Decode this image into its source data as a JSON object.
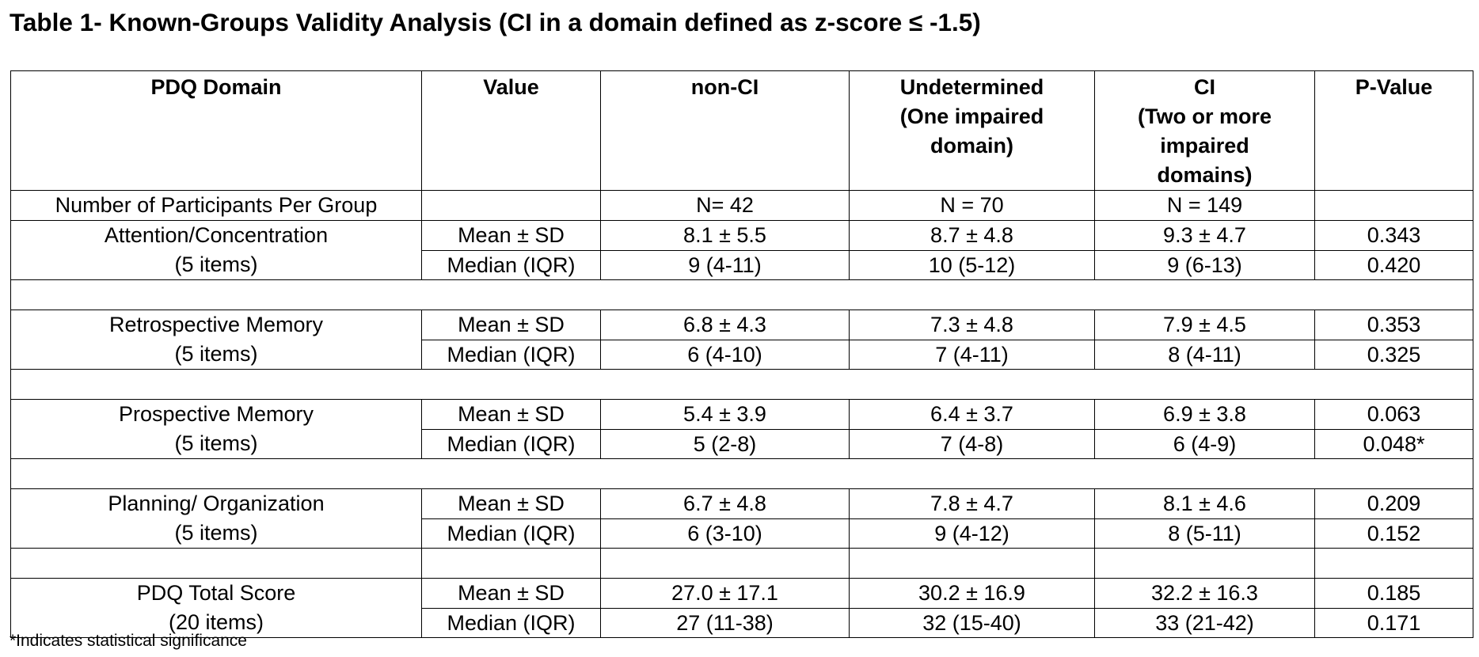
{
  "title": "Table 1- Known-Groups Validity Analysis (CI in a domain defined as z-score ≤ -1.5)",
  "headers": {
    "domain": "PDQ Domain",
    "value": "Value",
    "non_ci": "non-CI",
    "undetermined": [
      "Undetermined",
      "(One impaired",
      "domain)"
    ],
    "ci": [
      "CI",
      "(Two or more",
      "impaired",
      "domains)"
    ],
    "p_value": "P-Value"
  },
  "participants": {
    "label": "Number of Participants Per Group",
    "non_ci": "N= 42",
    "undetermined": "N = 70",
    "ci": "N = 149"
  },
  "domains": [
    {
      "name": "Attention/Concentration",
      "items": "(5 items)",
      "rows": [
        {
          "value": "Mean ± SD",
          "non_ci": "8.1 ± 5.5",
          "undetermined": "8.7 ± 4.8",
          "ci": "9.3 ± 4.7",
          "p_value": "0.343"
        },
        {
          "value": "Median (IQR)",
          "non_ci": "9 (4-11)",
          "undetermined": "10 (5-12)",
          "ci": "9 (6-13)",
          "p_value": "0.420"
        }
      ]
    },
    {
      "name": "Retrospective Memory",
      "items": "(5 items)",
      "rows": [
        {
          "value": "Mean ± SD",
          "non_ci": "6.8 ± 4.3",
          "undetermined": "7.3 ± 4.8",
          "ci": "7.9 ± 4.5",
          "p_value": "0.353"
        },
        {
          "value": "Median (IQR)",
          "non_ci": "6 (4-10)",
          "undetermined": "7 (4-11)",
          "ci": "8 (4-11)",
          "p_value": "0.325"
        }
      ]
    },
    {
      "name": "Prospective Memory",
      "items": "(5 items)",
      "rows": [
        {
          "value": "Mean ± SD",
          "non_ci": "5.4 ± 3.9",
          "undetermined": "6.4 ± 3.7",
          "ci": "6.9 ± 3.8",
          "p_value": "0.063"
        },
        {
          "value": "Median (IQR)",
          "non_ci": "5 (2-8)",
          "undetermined": "7 (4-8)",
          "ci": "6 (4-9)",
          "p_value": "0.048*"
        }
      ]
    },
    {
      "name": "Planning/ Organization",
      "items": "(5 items)",
      "rows": [
        {
          "value": "Mean ± SD",
          "non_ci": "6.7 ± 4.8",
          "undetermined": "7.8 ± 4.7",
          "ci": "8.1 ± 4.6",
          "p_value": "0.209"
        },
        {
          "value": "Median (IQR)",
          "non_ci": "6 (3-10)",
          "undetermined": "9 (4-12)",
          "ci": "8 (5-11)",
          "p_value": "0.152"
        }
      ]
    },
    {
      "name": "PDQ Total Score",
      "items": "(20 items)",
      "rows": [
        {
          "value": "Mean ± SD",
          "non_ci": "27.0 ± 17.1",
          "undetermined": "30.2 ± 16.9",
          "ci": "32.2 ± 16.3",
          "p_value": "0.185"
        },
        {
          "value": "Median (IQR)",
          "non_ci": "27 (11-38)",
          "undetermined": "32 (15-40)",
          "ci": "33 (21-42)",
          "p_value": "0.171"
        }
      ]
    }
  ],
  "footnote": "*Indicates statistical significance"
}
